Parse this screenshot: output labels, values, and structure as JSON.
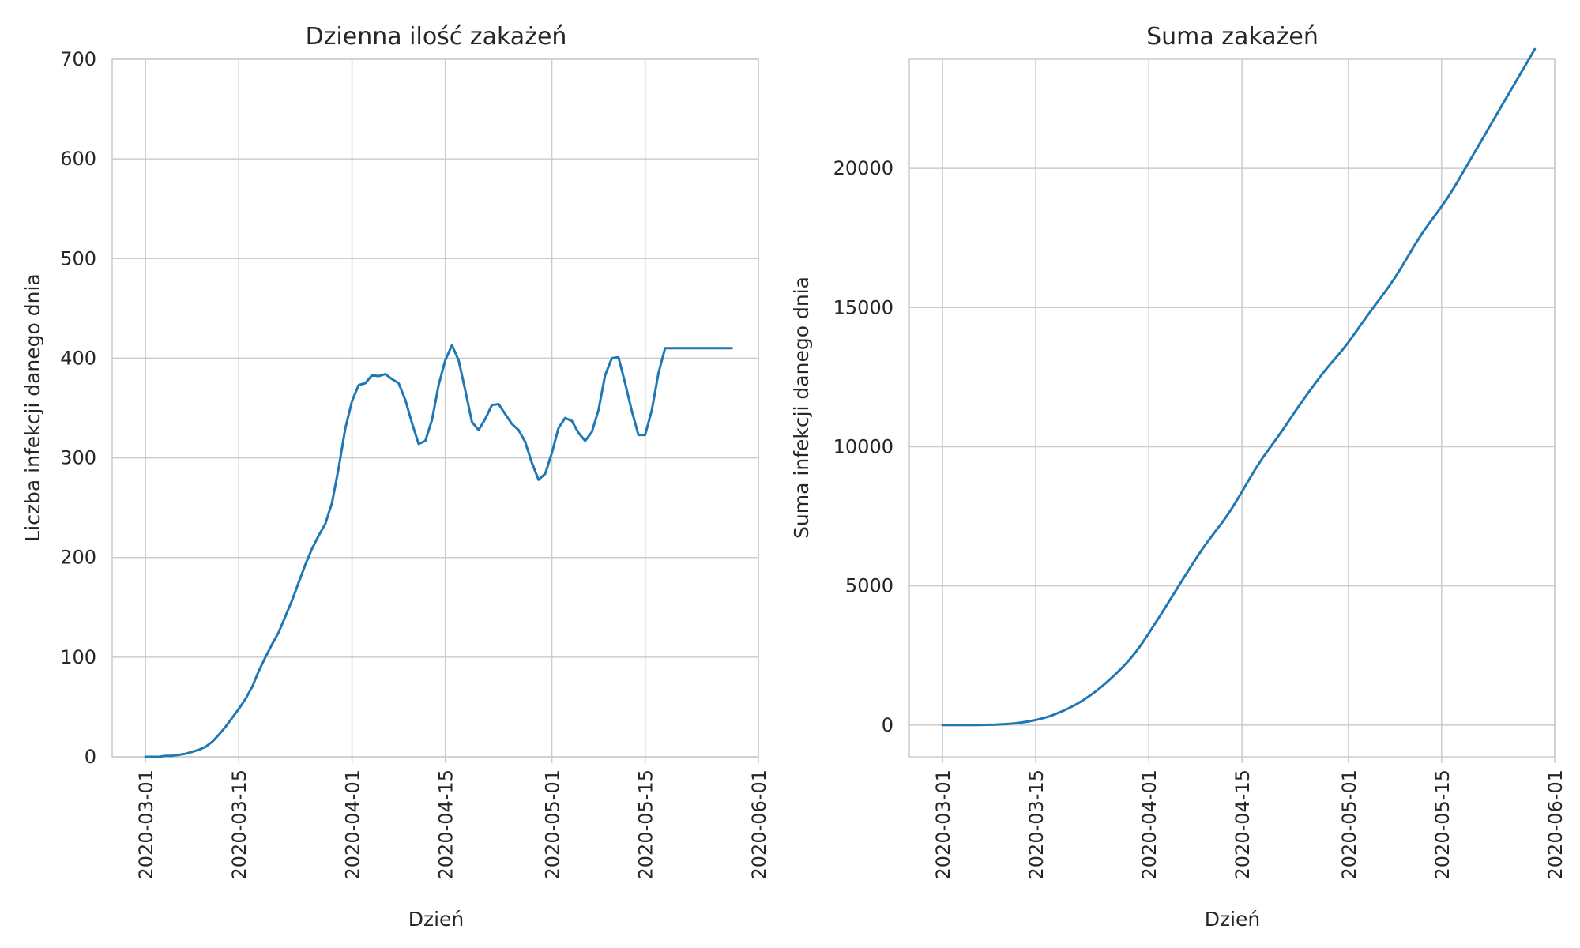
{
  "chart_data": [
    {
      "type": "line",
      "title": "Dzienna ilość zakażeń",
      "xlabel": "Dzień",
      "ylabel": "Liczba infekcji danego dnia",
      "xlim": [
        "2020-02-25",
        "2020-06-01"
      ],
      "ylim": [
        0,
        700
      ],
      "xticks": [
        "2020-03-01",
        "2020-03-15",
        "2020-04-01",
        "2020-04-15",
        "2020-05-01",
        "2020-05-15",
        "2020-06-01"
      ],
      "yticks": [
        "0",
        "100",
        "200",
        "300",
        "400",
        "500",
        "600",
        "700"
      ],
      "grid": true,
      "color": "#1f77b4",
      "series": [
        {
          "x_start": "2020-03-01",
          "x_end": "2020-05-28",
          "values": [
            0,
            0,
            0,
            1,
            1,
            2,
            3,
            5,
            7,
            10,
            15,
            22,
            30,
            39,
            48,
            58,
            70,
            86,
            100,
            113,
            125,
            141,
            157,
            175,
            193,
            209,
            222,
            234,
            255,
            290,
            330,
            357,
            373,
            375,
            383,
            382,
            384,
            379,
            375,
            358,
            335,
            314,
            317,
            338,
            373,
            398,
            413,
            398,
            368,
            336,
            328,
            339,
            353,
            354,
            344,
            334,
            328,
            316,
            295,
            278,
            284,
            305,
            330,
            340,
            337,
            325,
            317,
            326,
            348,
            383,
            400,
            401,
            375,
            347,
            323,
            323,
            348,
            385,
            410,
            410,
            410,
            410,
            410,
            410,
            410,
            410,
            410,
            410,
            410
          ]
        }
      ]
    },
    {
      "type": "line",
      "title": "Suma zakażeń",
      "xlabel": "Dzień",
      "ylabel": "Suma infekcji danego dnia",
      "xlim": [
        "2020-02-25",
        "2020-06-01"
      ],
      "ylim": [
        -1140,
        23920
      ],
      "xticks": [
        "2020-03-01",
        "2020-03-15",
        "2020-04-01",
        "2020-04-15",
        "2020-05-01",
        "2020-05-15",
        "2020-06-01"
      ],
      "yticks": [
        "0",
        "5000",
        "10000",
        "15000",
        "20000"
      ],
      "grid": true,
      "color": "#1f77b4",
      "series": [
        {
          "x_start": "2020-03-01",
          "x_end": "2020-05-29",
          "values": [
            0,
            0,
            0,
            1,
            2,
            4,
            7,
            12,
            19,
            29,
            44,
            66,
            96,
            135,
            183,
            241,
            311,
            397,
            497,
            610,
            735,
            876,
            1033,
            1208,
            1401,
            1610,
            1832,
            2066,
            2321,
            2611,
            2941,
            3298,
            3671,
            4046,
            4429,
            4811,
            5195,
            5574,
            5949,
            6307,
            6642,
            6956,
            7273,
            7611,
            7984,
            8382,
            8795,
            9193,
            9561,
            9897,
            10225,
            10564,
            10917,
            11271,
            11615,
            11949,
            12277,
            12593,
            12888,
            13166,
            13450,
            13755,
            14085,
            14425,
            14762,
            15087,
            15404,
            15730,
            16078,
            16461,
            16861,
            17262,
            17637,
            17984,
            18307,
            18630,
            18978,
            19363,
            19773,
            20183,
            20593,
            21003,
            21413,
            21823,
            22233,
            22643,
            23053,
            23463,
            23873,
            24283
          ]
        }
      ]
    }
  ]
}
